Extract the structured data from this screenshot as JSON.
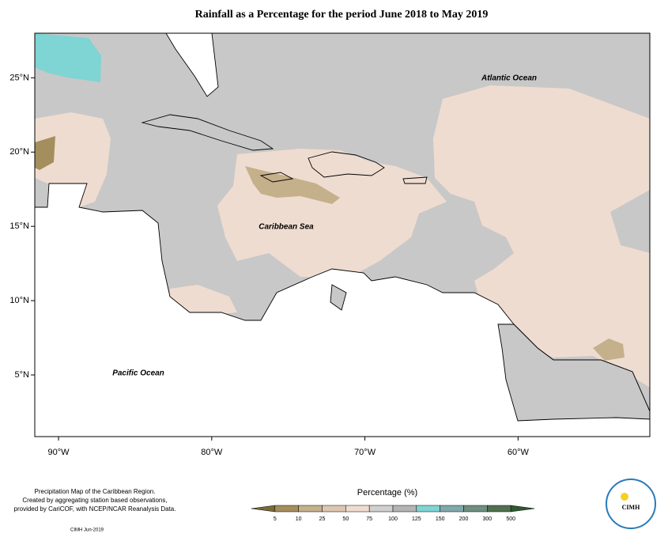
{
  "title": "Rainfall as a Percentage for the period June 2018 to May 2019",
  "map": {
    "xlim": [
      -91.55,
      -51.4
    ],
    "ylim": [
      0.85,
      28
    ],
    "xticks": [
      {
        "value": -90,
        "label": "90°W"
      },
      {
        "value": -80,
        "label": "80°W"
      },
      {
        "value": -70,
        "label": "70°W"
      },
      {
        "value": -60,
        "label": "60°W"
      }
    ],
    "yticks": [
      {
        "value": 5,
        "label": "5°N"
      },
      {
        "value": 10,
        "label": "10°N"
      },
      {
        "value": 15,
        "label": "15°N"
      },
      {
        "value": 20,
        "label": "20°N"
      },
      {
        "value": 25,
        "label": "25°N"
      }
    ],
    "labels": [
      "Atlantic Ocean",
      "Caribbean Sea",
      "Pacific Ocean"
    ]
  },
  "legend": {
    "title": "Percentage (%)",
    "levels": [
      5,
      10,
      25,
      50,
      75,
      100,
      125,
      150,
      200,
      300,
      500
    ],
    "colors": [
      "#7a6a3a",
      "#a58e5e",
      "#c5b08c",
      "#dcc6b2",
      "#efdcd0",
      "#d0d0d0",
      "#b4b4b4",
      "#7fd4d4",
      "#82a9a9",
      "#6f8f80",
      "#52704f",
      "#2f5a30"
    ]
  },
  "footer": {
    "lines": [
      "Precipitation Map of the Caribbean Region.",
      "Created by aggregating station based observations,",
      "provided by CariCOF, with NCEP/NCAR Reanalysis Data."
    ],
    "credit": "CIMH Jun-2019",
    "logo": "CIMH"
  }
}
